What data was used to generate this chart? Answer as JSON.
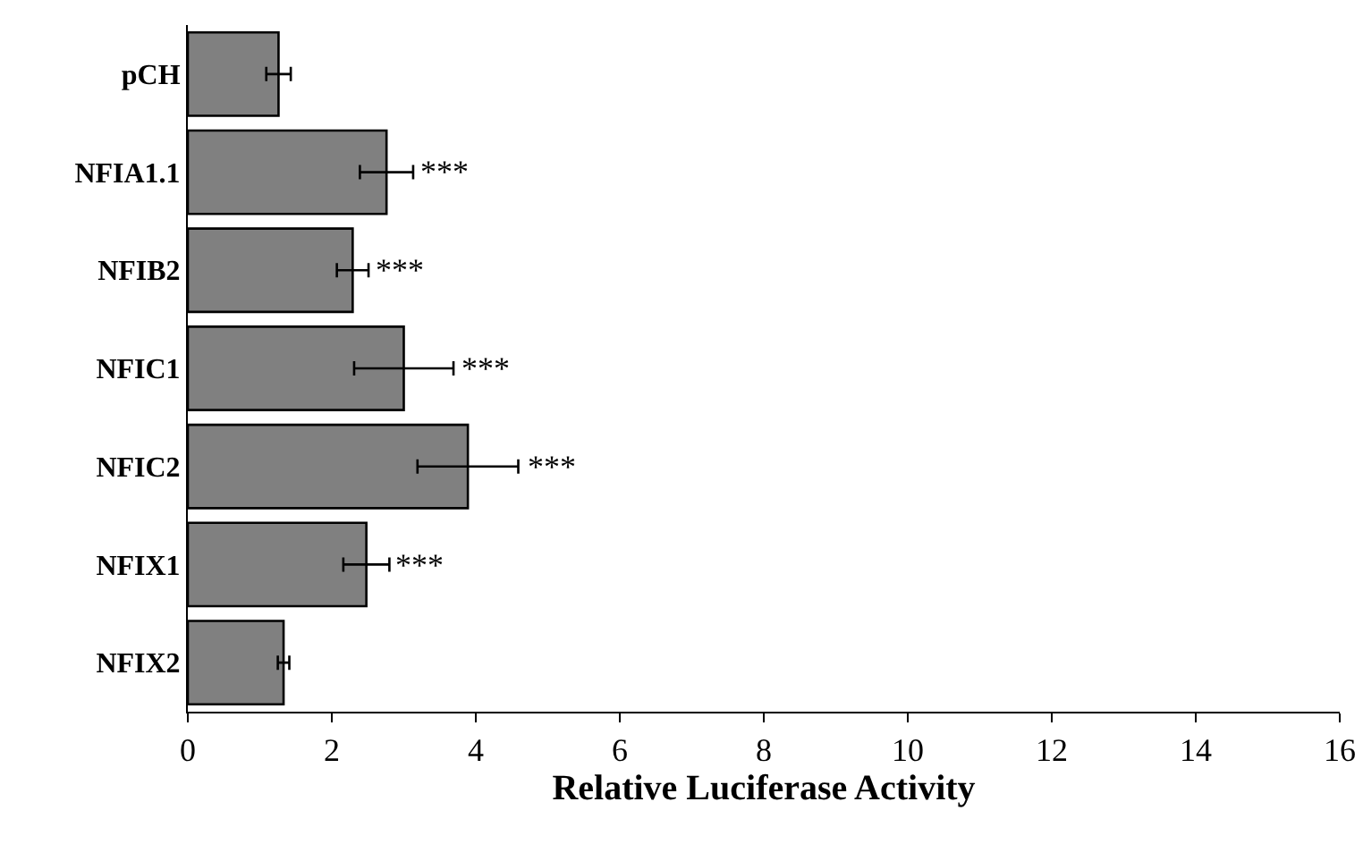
{
  "chart_data": {
    "type": "bar",
    "orientation": "horizontal",
    "categories": [
      "pCH",
      "NFIA1.1",
      "NFIB2",
      "NFIC1",
      "NFIC2",
      "NFIX1",
      "NFIX2"
    ],
    "values": [
      1.26,
      2.76,
      2.29,
      3.0,
      3.89,
      2.48,
      1.33
    ],
    "errors": [
      0.17,
      0.37,
      0.22,
      0.69,
      0.7,
      0.32,
      0.08
    ],
    "color": "#808080",
    "xlabel": "Relative Luciferase Activity",
    "xlim": [
      0,
      16
    ],
    "xticks": [
      0,
      2,
      4,
      6,
      8,
      10,
      12,
      14,
      16
    ],
    "grid": false,
    "annotations": [
      {
        "text": "***",
        "x": 3.13,
        "y": "NFIA1.1"
      },
      {
        "text": "***",
        "x": 2.52,
        "y": "NFIB2"
      },
      {
        "text": "***",
        "x": 3.69,
        "y": "NFIC1"
      },
      {
        "text": "***",
        "x": 4.61,
        "y": "NFIC2"
      },
      {
        "text": "***",
        "x": 2.79,
        "y": "NFIX1"
      }
    ]
  }
}
